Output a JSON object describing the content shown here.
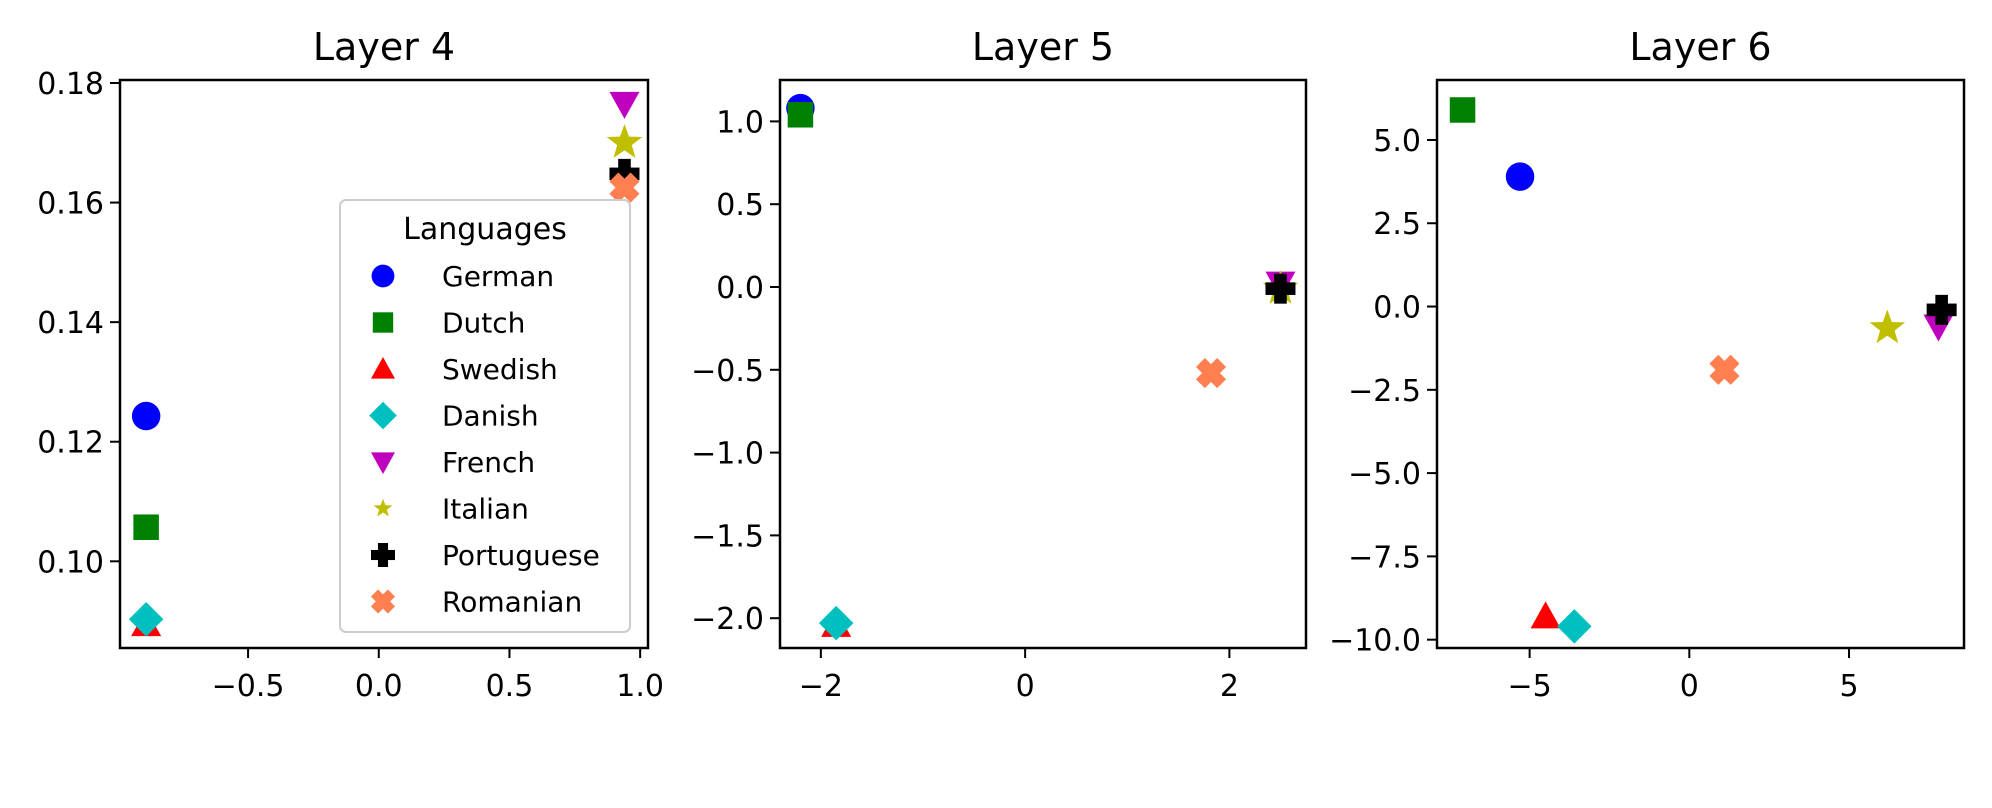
{
  "chart_data": [
    {
      "type": "scatter",
      "title": "Layer 4",
      "xlabel": "",
      "ylabel": "",
      "xlim": [
        -0.99,
        1.03
      ],
      "ylim": [
        0.0855,
        0.1805
      ],
      "xticks": [
        -0.5,
        0.0,
        0.5,
        1.0
      ],
      "xtick_labels": [
        "−0.5",
        "0.0",
        "0.5",
        "1.0"
      ],
      "yticks": [
        0.1,
        0.12,
        0.14,
        0.16,
        0.18
      ],
      "ytick_labels": [
        "0.10",
        "0.12",
        "0.14",
        "0.16",
        "0.18"
      ],
      "grid": false,
      "legend_placement": "center-right",
      "series": [
        {
          "name": "German",
          "marker": "circle",
          "color": "#0000ff",
          "x": [
            -0.89
          ],
          "y": [
            0.1243
          ]
        },
        {
          "name": "Dutch",
          "marker": "square",
          "color": "#008000",
          "x": [
            -0.89
          ],
          "y": [
            0.1057
          ]
        },
        {
          "name": "Swedish",
          "marker": "triangle-up",
          "color": "#ff0000",
          "x": [
            -0.89
          ],
          "y": [
            0.0895
          ]
        },
        {
          "name": "Danish",
          "marker": "diamond",
          "color": "#00bfbf",
          "x": [
            -0.89
          ],
          "y": [
            0.0903
          ]
        },
        {
          "name": "French",
          "marker": "triangle-down",
          "color": "#bf00bf",
          "x": [
            0.94
          ],
          "y": [
            0.1765
          ]
        },
        {
          "name": "Italian",
          "marker": "star",
          "color": "#bfbf00",
          "x": [
            0.94
          ],
          "y": [
            0.17
          ]
        },
        {
          "name": "Portuguese",
          "marker": "plus",
          "color": "#000000",
          "x": [
            0.94
          ],
          "y": [
            0.1648
          ]
        },
        {
          "name": "Romanian",
          "marker": "x",
          "color": "#ff7f50",
          "x": [
            0.94
          ],
          "y": [
            0.1625
          ]
        }
      ]
    },
    {
      "type": "scatter",
      "title": "Layer 5",
      "xlabel": "",
      "ylabel": "",
      "xlim": [
        -2.4,
        2.75
      ],
      "ylim": [
        -2.18,
        1.25
      ],
      "xticks": [
        -2,
        0,
        2
      ],
      "xtick_labels": [
        "−2",
        "0",
        "2"
      ],
      "yticks": [
        -2.0,
        -1.5,
        -1.0,
        -0.5,
        0.0,
        0.5,
        1.0
      ],
      "ytick_labels": [
        "−2.0",
        "−1.5",
        "−1.0",
        "−0.5",
        "0.0",
        "0.5",
        "1.0"
      ],
      "grid": false,
      "series": [
        {
          "name": "German",
          "marker": "circle",
          "color": "#0000ff",
          "x": [
            -2.2
          ],
          "y": [
            1.08
          ]
        },
        {
          "name": "Dutch",
          "marker": "square",
          "color": "#008000",
          "x": [
            -2.2
          ],
          "y": [
            1.04
          ]
        },
        {
          "name": "Swedish",
          "marker": "triangle-up",
          "color": "#ff0000",
          "x": [
            -1.85
          ],
          "y": [
            -2.04
          ]
        },
        {
          "name": "Danish",
          "marker": "diamond",
          "color": "#00bfbf",
          "x": [
            -1.85
          ],
          "y": [
            -2.03
          ]
        },
        {
          "name": "French",
          "marker": "triangle-down",
          "color": "#bf00bf",
          "x": [
            2.5
          ],
          "y": [
            0.02
          ]
        },
        {
          "name": "Italian",
          "marker": "star",
          "color": "#bfbf00",
          "x": [
            2.5
          ],
          "y": [
            -0.01
          ]
        },
        {
          "name": "Portuguese",
          "marker": "plus",
          "color": "#000000",
          "x": [
            2.5
          ],
          "y": [
            -0.01
          ]
        },
        {
          "name": "Romanian",
          "marker": "x",
          "color": "#ff7f50",
          "x": [
            1.82
          ],
          "y": [
            -0.52
          ]
        }
      ]
    },
    {
      "type": "scatter",
      "title": "Layer 6",
      "xlabel": "",
      "ylabel": "",
      "xlim": [
        -7.9,
        8.6
      ],
      "ylim": [
        -10.25,
        6.8
      ],
      "xticks": [
        -5,
        0,
        5
      ],
      "xtick_labels": [
        "−5",
        "0",
        "5"
      ],
      "yticks": [
        -10.0,
        -7.5,
        -5.0,
        -2.5,
        0.0,
        2.5,
        5.0
      ],
      "ytick_labels": [
        "−10.0",
        "−7.5",
        "−5.0",
        "−2.5",
        "0.0",
        "2.5",
        "5.0"
      ],
      "grid": false,
      "series": [
        {
          "name": "German",
          "marker": "circle",
          "color": "#0000ff",
          "x": [
            -5.3
          ],
          "y": [
            3.9
          ]
        },
        {
          "name": "Dutch",
          "marker": "square",
          "color": "#008000",
          "x": [
            -7.1
          ],
          "y": [
            5.9
          ]
        },
        {
          "name": "Swedish",
          "marker": "triangle-up",
          "color": "#ff0000",
          "x": [
            -4.5
          ],
          "y": [
            -9.3
          ]
        },
        {
          "name": "Danish",
          "marker": "diamond",
          "color": "#00bfbf",
          "x": [
            -3.6
          ],
          "y": [
            -9.6
          ]
        },
        {
          "name": "French",
          "marker": "triangle-down",
          "color": "#bf00bf",
          "x": [
            7.8
          ],
          "y": [
            -0.6
          ]
        },
        {
          "name": "Italian",
          "marker": "star",
          "color": "#bfbf00",
          "x": [
            6.2
          ],
          "y": [
            -0.65
          ]
        },
        {
          "name": "Portuguese",
          "marker": "plus",
          "color": "#000000",
          "x": [
            7.9
          ],
          "y": [
            -0.1
          ]
        },
        {
          "name": "Romanian",
          "marker": "x",
          "color": "#ff7f50",
          "x": [
            1.1
          ],
          "y": [
            -1.9
          ]
        }
      ]
    }
  ],
  "legend": {
    "title": "Languages",
    "entries": [
      "German",
      "Dutch",
      "Swedish",
      "Danish",
      "French",
      "Italian",
      "Portuguese",
      "Romanian"
    ]
  }
}
